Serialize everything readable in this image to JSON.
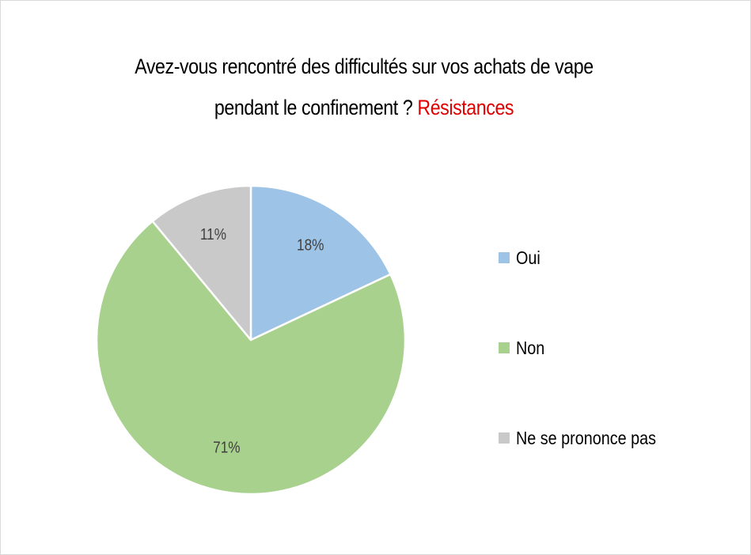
{
  "title": {
    "line1": "Avez-vous rencontré des difficultés sur vos achats de vape",
    "line2": "pendant le confinement ?",
    "highlight": "Résistances",
    "highlight_color": "#e00000"
  },
  "chart_data": {
    "type": "pie",
    "title": "Avez-vous rencontré des difficultés sur vos achats de vape pendant le confinement ? Résistances",
    "start_angle_deg": 0,
    "direction": "clockwise",
    "legend_position": "right",
    "slices": [
      {
        "label": "Oui",
        "value": 18,
        "display": "18%",
        "color": "#9dc3e6"
      },
      {
        "label": "Non",
        "value": 71,
        "display": "71%",
        "color": "#a9d18e"
      },
      {
        "label": "Ne se prononce pas",
        "value": 11,
        "display": "11%",
        "color": "#c9c9c9"
      }
    ]
  }
}
